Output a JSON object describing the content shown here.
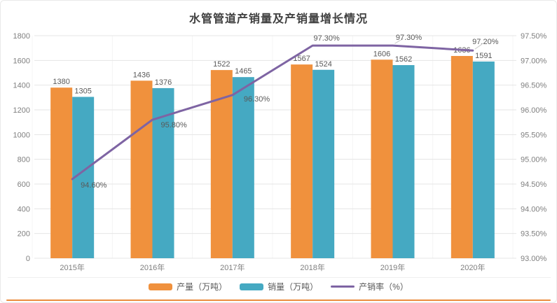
{
  "title": "水管管道产销量及产销量增长情况",
  "legend": {
    "production": "产量（万吨）",
    "sales": "销量（万吨）",
    "rate": "产销率（%）"
  },
  "colors": {
    "production": "#F0913D",
    "sales": "#45A9C2",
    "rate": "#7E64A3",
    "grid": "#E5E5E5",
    "grid_vertical": "#F4F4F4",
    "axis_text": "#7F7F7F",
    "label_text": "#595959",
    "title_text": "#404040",
    "leader": "#C9C9C9",
    "separator": "#EFEFEF",
    "bottom_rule": "#EB8C3E"
  },
  "chart_data": {
    "type": "bar",
    "subtype": "bar+line-combo",
    "title": "水管管道产销量及产销量增长情况",
    "categories": [
      "2015年",
      "2016年",
      "2017年",
      "2018年",
      "2019年",
      "2020年"
    ],
    "series": [
      {
        "name": "产量（万吨）",
        "type": "bar",
        "axis": "left",
        "values": [
          1380,
          1436,
          1522,
          1567,
          1606,
          1636
        ]
      },
      {
        "name": "销量（万吨）",
        "type": "bar",
        "axis": "left",
        "values": [
          1305,
          1376,
          1465,
          1524,
          1562,
          1591
        ]
      },
      {
        "name": "产销率（%）",
        "type": "line",
        "axis": "right",
        "values": [
          94.6,
          95.8,
          96.3,
          97.3,
          97.3,
          97.2
        ],
        "labels": [
          "94.60%",
          "95.80%",
          "96.30%",
          "97.30%",
          "97.30%",
          "97.20%"
        ]
      }
    ],
    "left_axis": {
      "min": 0,
      "max": 1800,
      "step": 200
    },
    "right_axis": {
      "min": 93,
      "max": 97.5,
      "step": 0.5,
      "format": "percent2"
    },
    "grid": true,
    "legend_position": "bottom"
  }
}
